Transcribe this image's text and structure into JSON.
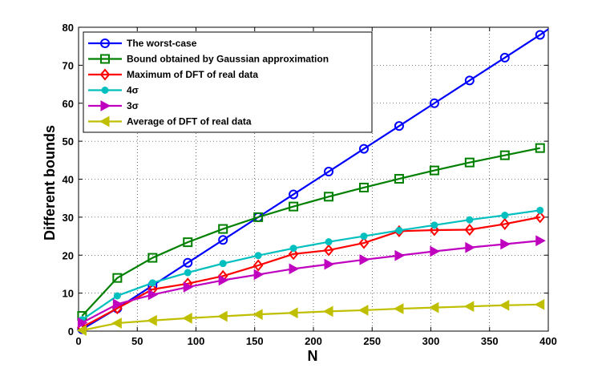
{
  "chart_data": {
    "type": "line",
    "title": "",
    "xlabel": "N",
    "ylabel": "Different bounds",
    "xlim": [
      0,
      400
    ],
    "ylim": [
      0,
      80
    ],
    "xticks": [
      0,
      50,
      100,
      150,
      200,
      250,
      300,
      350,
      400
    ],
    "yticks": [
      0,
      10,
      20,
      30,
      40,
      50,
      60,
      70,
      80
    ],
    "grid": true,
    "legend_position": "top-left",
    "x": [
      3,
      33,
      63,
      93,
      123,
      153,
      183,
      213,
      243,
      273,
      303,
      333,
      363,
      393
    ],
    "series": [
      {
        "name": "The worst-case",
        "color": "#0000ff",
        "marker": "circle",
        "values": [
          0.5,
          6,
          12,
          18,
          24,
          30,
          36,
          42,
          48,
          54,
          60,
          66,
          72,
          78
        ],
        "extend_to": [
          400,
          79.5
        ]
      },
      {
        "name": "Bound obtained by Gaussian approximation",
        "color": "#008000",
        "marker": "square",
        "values": [
          4,
          14,
          19.3,
          23.4,
          26.9,
          30,
          32.8,
          35.4,
          37.8,
          40.1,
          42.3,
          44.4,
          46.3,
          48.2
        ]
      },
      {
        "name": "Maximum of DFT of real data",
        "color": "#ff0000",
        "marker": "diamond",
        "values": [
          1,
          6,
          11,
          12.5,
          14.5,
          17.3,
          20.3,
          21.3,
          23.2,
          26.3,
          26.6,
          26.7,
          28.2,
          30
        ]
      },
      {
        "name": "4σ",
        "color": "#00bfbf",
        "marker": "dot",
        "values": [
          3,
          9.3,
          12.7,
          15.4,
          17.8,
          19.9,
          21.8,
          23.5,
          25,
          26.5,
          27.9,
          29.3,
          30.5,
          31.8
        ]
      },
      {
        "name": "3σ",
        "color": "#bf00bf",
        "marker": "triangle-right",
        "values": [
          2.2,
          7.1,
          9.6,
          11.6,
          13.4,
          14.9,
          16.4,
          17.6,
          18.8,
          19.9,
          21,
          22,
          22.9,
          23.8
        ]
      },
      {
        "name": "Average of DFT of real data",
        "color": "#bfbf00",
        "marker": "triangle-left",
        "values": [
          0.2,
          2.1,
          2.8,
          3.4,
          3.9,
          4.4,
          4.8,
          5.2,
          5.5,
          5.9,
          6.2,
          6.5,
          6.8,
          7
        ]
      }
    ]
  }
}
